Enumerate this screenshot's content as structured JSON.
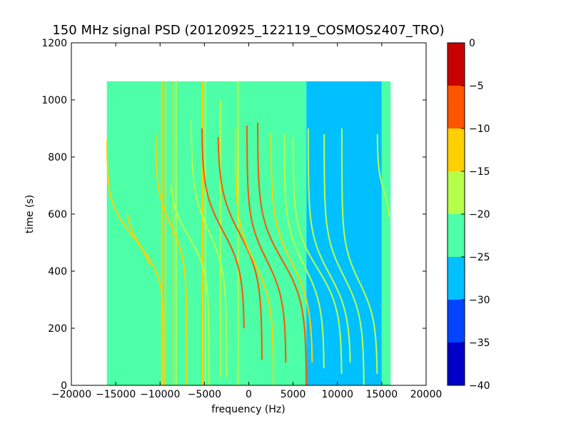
{
  "chart_data": {
    "type": "heatmap",
    "title": "150 MHz signal PSD (20120925_122119_COSMOS2407_TRO)",
    "xlabel": "frequency (Hz)",
    "ylabel": "time (s)",
    "xlim": [
      -20000,
      20000
    ],
    "ylim": [
      0,
      1200
    ],
    "xticks": [
      -20000,
      -15000,
      -10000,
      -5000,
      0,
      5000,
      10000,
      15000,
      20000
    ],
    "xtick_labels": [
      "−20000",
      "−15000",
      "−10000",
      "−5000",
      "0",
      "5000",
      "10000",
      "15000",
      "20000"
    ],
    "yticks": [
      0,
      200,
      400,
      600,
      800,
      1000,
      1200
    ],
    "ytick_labels": [
      "0",
      "200",
      "400",
      "600",
      "800",
      "1000",
      "1200"
    ],
    "data_extent": {
      "freq": [
        -16000,
        16000
      ],
      "time": [
        0,
        1065
      ]
    },
    "colorbar": {
      "levels": [
        -40,
        -35,
        -30,
        -25,
        -20,
        -15,
        -10,
        -5,
        0
      ],
      "level_labels": [
        "−40",
        "−35",
        "−30",
        "−25",
        "−20",
        "−15",
        "−10",
        "−5",
        "0"
      ],
      "colors": [
        "#0000c8",
        "#0044ff",
        "#00c0ff",
        "#4dffa6",
        "#b6ff4a",
        "#ffd000",
        "#ff5500",
        "#c80000"
      ]
    },
    "background": {
      "regions": [
        {
          "from": -16000,
          "to": 6500,
          "level": -22.5
        },
        {
          "from": 6500,
          "to": 15000,
          "level": -27.5
        },
        {
          "from": 15000,
          "to": 16000,
          "level": -22.5
        }
      ]
    },
    "vertical_lines": [
      {
        "freq": -9800,
        "t_min": 0,
        "t_max": 1065,
        "level": -12.5
      },
      {
        "freq": -9400,
        "t_min": 0,
        "t_max": 1065,
        "level": -12.5
      },
      {
        "freq": -8500,
        "t_min": 0,
        "t_max": 1065,
        "level": -12.5
      },
      {
        "freq": -8200,
        "t_min": 0,
        "t_max": 1065,
        "level": -17.5
      },
      {
        "freq": -5200,
        "t_min": 0,
        "t_max": 1065,
        "level": -12.5
      },
      {
        "freq": -4900,
        "t_min": 0,
        "t_max": 1065,
        "level": -17.5
      },
      {
        "freq": -3200,
        "t_min": 30,
        "t_max": 1000,
        "level": -17.5
      },
      {
        "freq": -1200,
        "t_min": 0,
        "t_max": 1065,
        "level": -17.5
      }
    ],
    "doppler_tracks": [
      {
        "f_high": -16000,
        "f_low": -10500,
        "t_center": 530,
        "spread": 110,
        "t_min": 420,
        "t_max": 860,
        "level": -12.5
      },
      {
        "f_high": -14000,
        "f_low": -9600,
        "t_center": 470,
        "spread": 100,
        "t_min": 0,
        "t_max": 600,
        "level": -12.5
      },
      {
        "f_high": -10500,
        "f_low": -7000,
        "t_center": 560,
        "spread": 120,
        "t_min": 0,
        "t_max": 880,
        "level": -12.5
      },
      {
        "f_high": -9000,
        "f_low": -4500,
        "t_center": 520,
        "spread": 120,
        "t_min": 0,
        "t_max": 700,
        "level": -17.5
      },
      {
        "f_high": -6500,
        "f_low": -2500,
        "t_center": 540,
        "spread": 140,
        "t_min": 30,
        "t_max": 930,
        "level": -17.5
      },
      {
        "f_high": -5300,
        "f_low": -500,
        "t_center": 540,
        "spread": 140,
        "t_min": 200,
        "t_max": 900,
        "level": -7.5
      },
      {
        "f_high": -3500,
        "f_low": 1500,
        "t_center": 530,
        "spread": 150,
        "t_min": 90,
        "t_max": 870,
        "level": -7.5
      },
      {
        "f_high": -1500,
        "f_low": 2800,
        "t_center": 430,
        "spread": 140,
        "t_min": 0,
        "t_max": 900,
        "level": -12.5
      },
      {
        "f_high": -200,
        "f_low": 4200,
        "t_center": 440,
        "spread": 140,
        "t_min": 80,
        "t_max": 910,
        "level": -7.5
      },
      {
        "f_high": 1000,
        "f_low": 6500,
        "t_center": 440,
        "spread": 150,
        "t_min": 0,
        "t_max": 920,
        "level": -7.5
      },
      {
        "f_high": 2500,
        "f_low": 7200,
        "t_center": 430,
        "spread": 150,
        "t_min": 80,
        "t_max": 880,
        "level": -12.5
      },
      {
        "f_high": 4000,
        "f_low": 8500,
        "t_center": 420,
        "spread": 140,
        "t_min": 60,
        "t_max": 880,
        "level": -17.5
      },
      {
        "f_high": 5000,
        "f_low": 10500,
        "t_center": 410,
        "spread": 140,
        "t_min": 40,
        "t_max": 870,
        "level": -17.5
      },
      {
        "f_high": 6700,
        "f_low": 11500,
        "t_center": 390,
        "spread": 140,
        "t_min": 80,
        "t_max": 900,
        "level": -17.5
      },
      {
        "f_high": 8500,
        "f_low": 13000,
        "t_center": 380,
        "spread": 140,
        "t_min": 0,
        "t_max": 880,
        "level": -17.5
      },
      {
        "f_high": 10500,
        "f_low": 14500,
        "t_center": 360,
        "spread": 130,
        "t_min": 40,
        "t_max": 900,
        "level": -17.5
      },
      {
        "f_high": 14500,
        "f_low": 16000,
        "t_center": 680,
        "spread": 80,
        "t_min": 590,
        "t_max": 880,
        "level": -17.5
      }
    ]
  }
}
